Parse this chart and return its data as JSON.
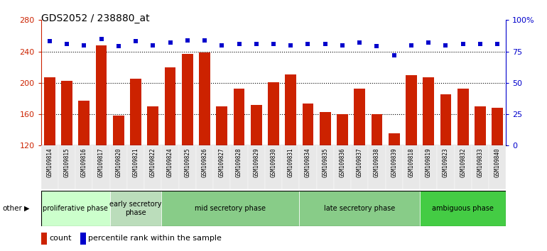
{
  "title": "GDS2052 / 238880_at",
  "samples": [
    "GSM109814",
    "GSM109815",
    "GSM109816",
    "GSM109817",
    "GSM109820",
    "GSM109821",
    "GSM109822",
    "GSM109824",
    "GSM109825",
    "GSM109826",
    "GSM109827",
    "GSM109828",
    "GSM109829",
    "GSM109830",
    "GSM109831",
    "GSM109834",
    "GSM109835",
    "GSM109836",
    "GSM109837",
    "GSM109838",
    "GSM109839",
    "GSM109818",
    "GSM109819",
    "GSM109823",
    "GSM109832",
    "GSM109833",
    "GSM109840"
  ],
  "counts": [
    207,
    203,
    177,
    248,
    158,
    205,
    170,
    220,
    237,
    239,
    170,
    193,
    172,
    201,
    211,
    174,
    163,
    160,
    193,
    160,
    136,
    210,
    207,
    185,
    193,
    170,
    168
  ],
  "percentiles": [
    83,
    81,
    80,
    85,
    79,
    83,
    80,
    82,
    84,
    84,
    80,
    81,
    81,
    81,
    80,
    81,
    81,
    80,
    82,
    79,
    72,
    80,
    82,
    80,
    81,
    81,
    81
  ],
  "bar_color": "#cc2200",
  "dot_color": "#0000cc",
  "left_ylim": [
    120,
    280
  ],
  "right_ylim": [
    0,
    100
  ],
  "left_yticks": [
    120,
    160,
    200,
    240,
    280
  ],
  "right_yticks": [
    0,
    25,
    50,
    75,
    100
  ],
  "right_yticklabels": [
    "0",
    "25",
    "50",
    "75",
    "100%"
  ],
  "hgrid_values": [
    160,
    200,
    240
  ],
  "phase_data": [
    {
      "label": "proliferative phase",
      "start": 0,
      "end": 4,
      "color": "#ccffcc"
    },
    {
      "label": "early secretory\nphase",
      "start": 4,
      "end": 7,
      "color": "#bbddbb"
    },
    {
      "label": "mid secretory phase",
      "start": 7,
      "end": 15,
      "color": "#88cc88"
    },
    {
      "label": "late secretory phase",
      "start": 15,
      "end": 22,
      "color": "#88cc88"
    },
    {
      "label": "ambiguous phase",
      "start": 22,
      "end": 27,
      "color": "#44cc44"
    }
  ],
  "axis_label_color_left": "#cc2200",
  "axis_label_color_right": "#0000cc",
  "title_fontsize": 10,
  "bar_fontsize": 6,
  "phase_fontsize": 7
}
